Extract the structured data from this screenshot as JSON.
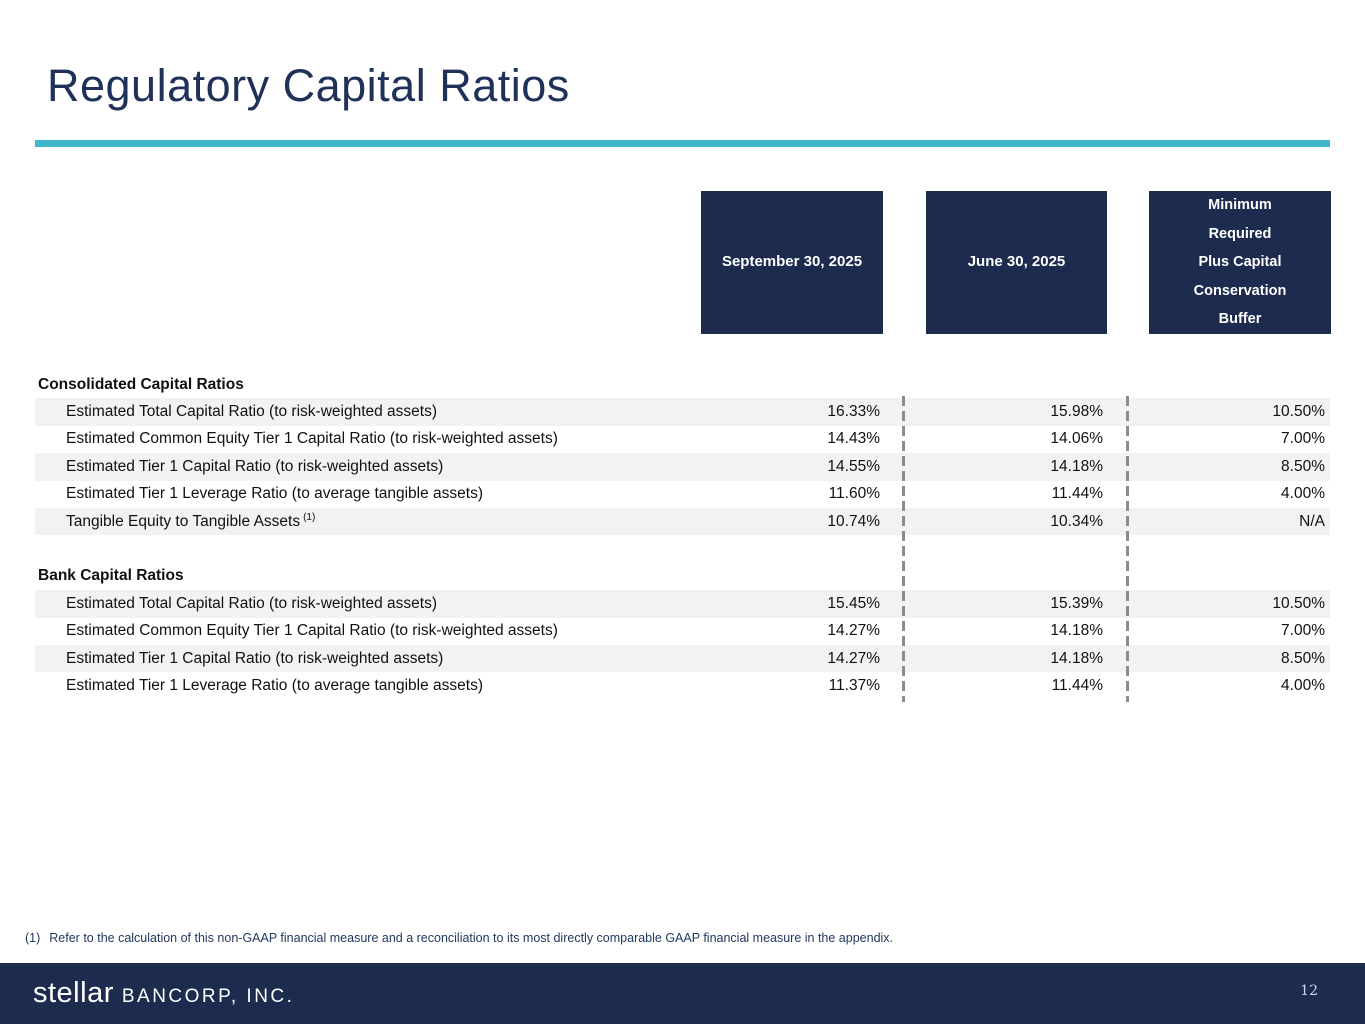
{
  "slide": {
    "title": "Regulatory Capital Ratios"
  },
  "colors": {
    "navy": "#1d2b4e",
    "teal_accent": "#3fb6c9",
    "row_stripe": "#f2f2f2",
    "dash_gray": "#8c8c8c"
  },
  "table": {
    "column_headers": [
      {
        "label": "September 30, 2025"
      },
      {
        "label": "June 30, 2025"
      },
      {
        "label": "Minimum\nRequired\nPlus Capital\nConservation\nBuffer"
      }
    ],
    "sections": [
      {
        "name": "Consolidated Capital Ratios",
        "rows": [
          {
            "label": "Estimated Total Capital Ratio (to risk-weighted assets)",
            "values": [
              "16.33%",
              "15.98%",
              "10.50%"
            ]
          },
          {
            "label": "Estimated Common Equity Tier 1 Capital Ratio (to risk-weighted assets)",
            "values": [
              "14.43%",
              "14.06%",
              "7.00%"
            ]
          },
          {
            "label": "Estimated Tier 1 Capital Ratio (to risk-weighted assets)",
            "values": [
              "14.55%",
              "14.18%",
              "8.50%"
            ]
          },
          {
            "label": "Estimated Tier 1 Leverage Ratio (to average tangible assets)",
            "values": [
              "11.60%",
              "11.44%",
              "4.00%"
            ]
          },
          {
            "label": "Tangible Equity to Tangible Assets",
            "footnote_marker": "(1)",
            "values": [
              "10.74%",
              "10.34%",
              "N/A"
            ]
          }
        ]
      },
      {
        "name": "Bank Capital Ratios",
        "rows": [
          {
            "label": "Estimated Total Capital Ratio (to risk-weighted assets)",
            "values": [
              "15.45%",
              "15.39%",
              "10.50%"
            ]
          },
          {
            "label": "Estimated Common Equity Tier 1 Capital Ratio (to risk-weighted assets)",
            "values": [
              "14.27%",
              "14.18%",
              "7.00%"
            ]
          },
          {
            "label": "Estimated Tier 1 Capital Ratio (to risk-weighted assets)",
            "values": [
              "14.27%",
              "14.18%",
              "8.50%"
            ]
          },
          {
            "label": "Estimated Tier 1 Leverage Ratio (to average tangible assets)",
            "values": [
              "11.37%",
              "11.44%",
              "4.00%"
            ]
          }
        ]
      }
    ]
  },
  "footnote": {
    "marker": "(1)",
    "text": "Refer to the calculation of this non-GAAP financial measure and a reconciliation to its most directly comparable GAAP financial measure in the appendix."
  },
  "footer": {
    "brand_primary": "stellar",
    "brand_secondary": "BANCORP, INC.",
    "page_number": "12"
  }
}
